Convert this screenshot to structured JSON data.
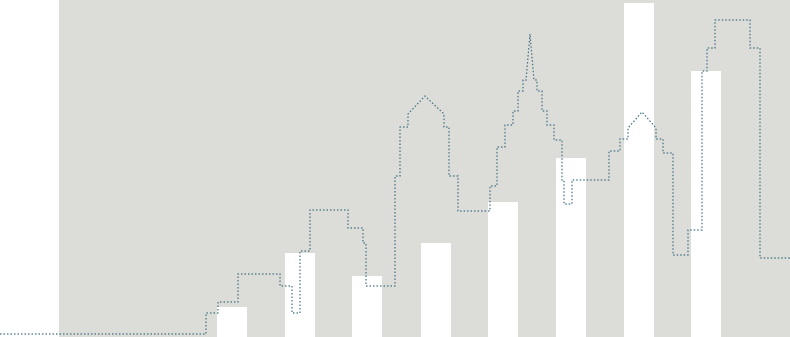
{
  "colors": {
    "page_background": "#ffffff",
    "panel_background": "#dcdcd8",
    "bar_fill": "#ffffff",
    "skyline_stroke": "#3f6f82"
  },
  "illustration": {
    "icon": "city-skyline-icon",
    "bars": [
      {
        "name": "bar-1",
        "level": 0.09
      },
      {
        "name": "bar-2",
        "level": 0.25
      },
      {
        "name": "bar-3",
        "level": 0.18
      },
      {
        "name": "bar-4",
        "level": 0.28
      },
      {
        "name": "bar-5",
        "level": 0.4
      },
      {
        "name": "bar-6",
        "level": 0.53
      },
      {
        "name": "bar-7",
        "level": 0.99
      },
      {
        "name": "bar-8",
        "level": 0.79
      }
    ]
  }
}
